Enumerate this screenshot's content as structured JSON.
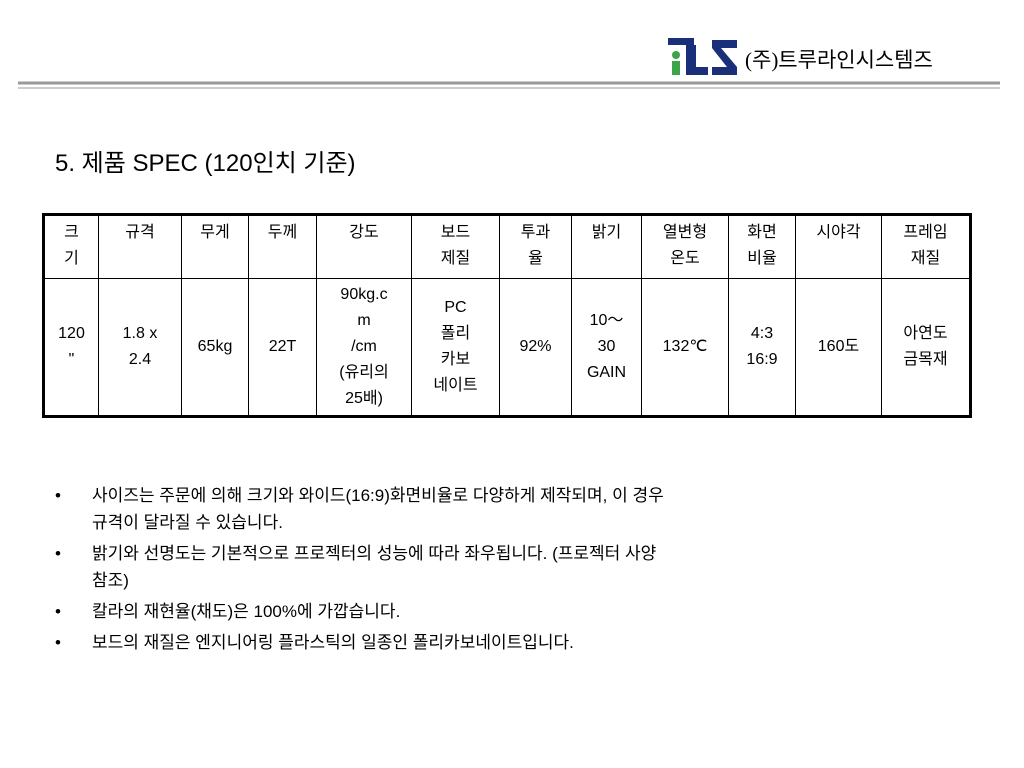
{
  "header": {
    "company": "(주)트루라인시스템즈"
  },
  "title": "5. 제품 SPEC (120인치 기준)",
  "table": {
    "header": [
      [
        "크",
        "기"
      ],
      [
        "규격"
      ],
      [
        "무게"
      ],
      [
        "두께"
      ],
      [
        "강도"
      ],
      [
        "보드",
        "제질"
      ],
      [
        "투과",
        "율"
      ],
      [
        "밝기"
      ],
      [
        "열변형",
        "온도"
      ],
      [
        "화면",
        "비율"
      ],
      [
        "시야각"
      ],
      [
        "프레임",
        "재질"
      ]
    ],
    "rows": [
      [
        [
          "120",
          "\""
        ],
        [
          "1.8 x",
          "2.4"
        ],
        [
          "65kg"
        ],
        [
          "22T"
        ],
        [
          "90kg.c",
          "m",
          "/cm",
          "(유리의",
          "25배)"
        ],
        [
          "PC",
          "폴리",
          "카보",
          "네이트"
        ],
        [
          "92%"
        ],
        [
          "10～",
          "30",
          "GAIN"
        ],
        [
          "132℃"
        ],
        [
          "4:3",
          "16:9"
        ],
        [
          "160도"
        ],
        [
          "아연도",
          "금목재"
        ]
      ]
    ]
  },
  "bullets": [
    [
      "사이즈는 주문에 의해 크기와 와이드(16:9)화면비율로 다양하게 제작되며, 이 경우",
      "규격이 달라질 수 있습니다."
    ],
    [
      "밝기와 선명도는 기본적으로 프로젝터의 성능에 따라 좌우됩니다. (프로젝터 사양",
      "참조)"
    ],
    [
      "칼라의 재현율(채도)은 100%에 가깝습니다."
    ],
    [
      "보드의 재질은 엔지니어링 플라스틱의 일종인 폴리카보네이트입니다."
    ]
  ]
}
